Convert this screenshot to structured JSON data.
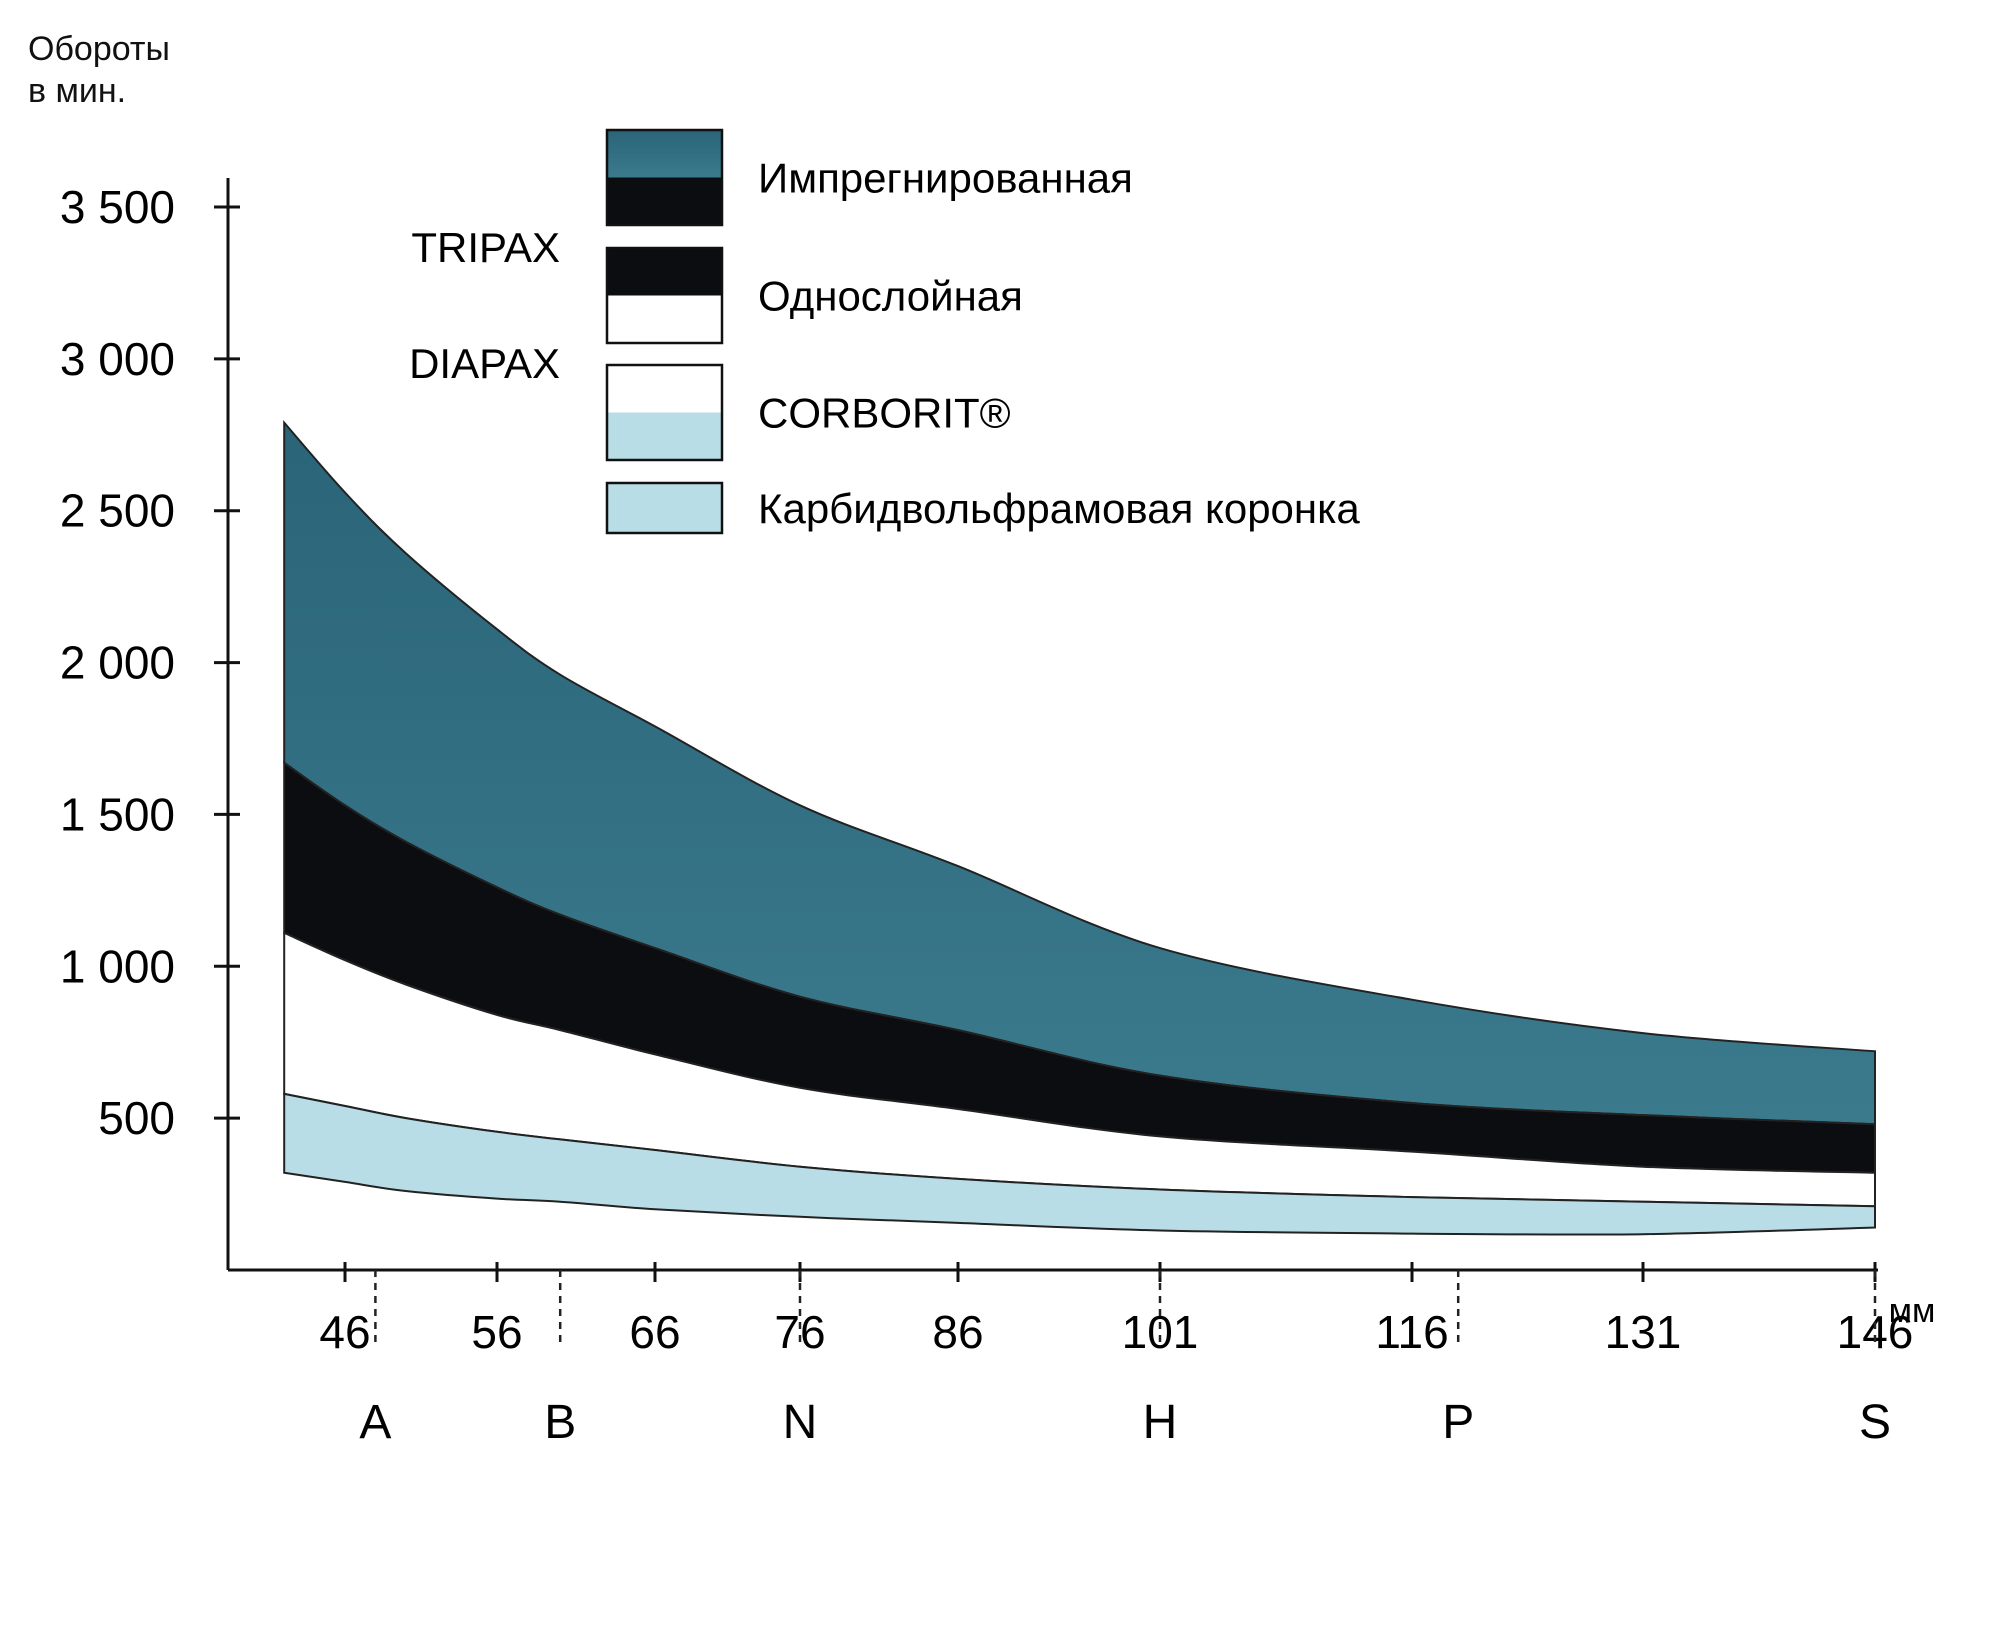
{
  "chart_data": {
    "type": "area",
    "ylabel_line1": "Обороты",
    "ylabel_line2": "в мин.",
    "xunit": "мм",
    "ylim": [
      0,
      3500
    ],
    "xlim": [
      38,
      146
    ],
    "yticks": [
      {
        "value": 3500,
        "label": "3 500"
      },
      {
        "value": 3000,
        "label": "3 000"
      },
      {
        "value": 2500,
        "label": "2 500"
      },
      {
        "value": 2000,
        "label": "2 000"
      },
      {
        "value": 1500,
        "label": "1 500"
      },
      {
        "value": 1000,
        "label": "1 000"
      },
      {
        "value": 500,
        "label": "500"
      }
    ],
    "xticks": [
      {
        "value": 46,
        "label": "46"
      },
      {
        "value": 56,
        "label": "56"
      },
      {
        "value": 66,
        "label": "66"
      },
      {
        "value": 76,
        "label": "76"
      },
      {
        "value": 86,
        "label": "86"
      },
      {
        "value": 101,
        "label": "101"
      },
      {
        "value": 116,
        "label": "116"
      },
      {
        "value": 131,
        "label": "131"
      },
      {
        "value": 146,
        "label": "146"
      }
    ],
    "categories": [
      {
        "label": "A",
        "x": 48
      },
      {
        "label": "B",
        "x": 60
      },
      {
        "label": "N",
        "x": 76
      },
      {
        "label": "H",
        "x": 101
      },
      {
        "label": "P",
        "x": 119
      },
      {
        "label": "S",
        "x": 146
      }
    ],
    "series_groups": [
      {
        "label": "TRIPAX"
      },
      {
        "label": "DIAPAX"
      }
    ],
    "x": [
      42,
      46,
      50,
      56,
      60,
      66,
      76,
      86,
      101,
      116,
      131,
      146
    ],
    "series": [
      {
        "name": "Импрегнированная",
        "color": "#2f6a80",
        "upper": [
          2790,
          2560,
          2360,
          2110,
          1960,
          1790,
          1530,
          1330,
          1060,
          890,
          780,
          720
        ],
        "lower": [
          1670,
          1530,
          1410,
          1260,
          1170,
          1060,
          900,
          790,
          640,
          550,
          510,
          480
        ]
      },
      {
        "name": "Однослойная",
        "color": "#0c0d10",
        "upper": [
          1670,
          1530,
          1410,
          1260,
          1170,
          1060,
          900,
          790,
          640,
          550,
          510,
          480
        ],
        "lower": [
          1110,
          1020,
          940,
          840,
          790,
          710,
          600,
          530,
          440,
          390,
          340,
          320
        ]
      },
      {
        "name": "CORBORIT®",
        "color": "#ffffff",
        "upper": [
          1110,
          1020,
          940,
          840,
          790,
          710,
          600,
          530,
          440,
          390,
          340,
          320
        ],
        "lower": [
          580,
          540,
          500,
          455,
          430,
          395,
          340,
          300,
          265,
          240,
          225,
          210
        ]
      },
      {
        "name": "Карбидвольфрамовая коронка",
        "color": "#b9dde6",
        "upper": [
          580,
          540,
          500,
          455,
          430,
          395,
          340,
          300,
          265,
          240,
          225,
          210
        ],
        "lower": [
          320,
          290,
          260,
          235,
          225,
          200,
          175,
          155,
          130,
          120,
          118,
          140
        ]
      }
    ],
    "legend": {
      "placement": "top-center",
      "items": [
        {
          "label": "Импрегнированная",
          "swatch_top": "#2f6a80",
          "swatch_bottom": "#0c0d10"
        },
        {
          "label": "Однослойная",
          "swatch_top": "#0c0d10",
          "swatch_bottom": "#ffffff"
        },
        {
          "label": "CORBORIT®",
          "swatch_top": "#ffffff",
          "swatch_bottom": "#b9dde6"
        },
        {
          "label": "Карбидвольфрамовая коронка",
          "swatch_top": "#b9dde6",
          "swatch_bottom": "#b9dde6"
        }
      ]
    },
    "grid": false
  }
}
